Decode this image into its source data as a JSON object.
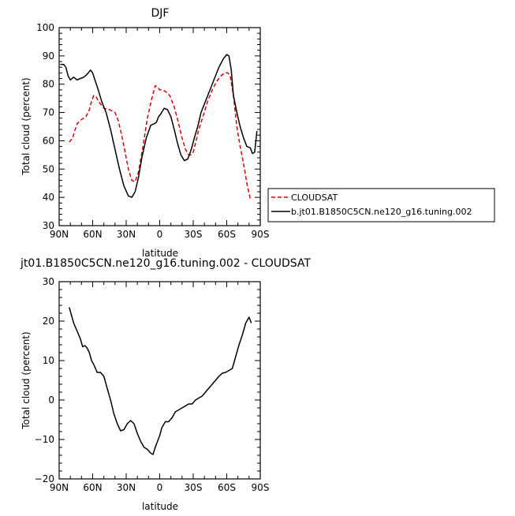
{
  "chart_data": [
    {
      "type": "line",
      "title": "DJF",
      "xlabel": "latitude",
      "ylabel": "Total cloud (percent)",
      "xlim": [
        90,
        -90
      ],
      "ylim": [
        30,
        100
      ],
      "xticks": [
        90,
        60,
        30,
        0,
        -30,
        -60,
        -90
      ],
      "xticklabels": [
        "90N",
        "60N",
        "30N",
        "0",
        "30S",
        "60S",
        "90S"
      ],
      "yticks": [
        30,
        40,
        50,
        60,
        70,
        80,
        90,
        100
      ],
      "yticklabels": [
        "30",
        "40",
        "50",
        "60",
        "70",
        "80",
        "90",
        "100"
      ],
      "legend_position": "right",
      "series": [
        {
          "name": "CLOUDSAT",
          "color": "#dd0000",
          "style": "dashed",
          "x": [
            81,
            78,
            74,
            70,
            66,
            63,
            61,
            59,
            57,
            54,
            50,
            45,
            40,
            37,
            34,
            31,
            28,
            25,
            22,
            19,
            15,
            11,
            7,
            4,
            2,
            0,
            -2,
            -5,
            -9,
            -13,
            -17,
            -20,
            -23,
            -26,
            -28,
            -30,
            -32,
            -35,
            -39,
            -43,
            -47,
            -51,
            -55,
            -58,
            -61,
            -63,
            -66,
            -69,
            -72,
            -75,
            -78,
            -81
          ],
          "y": [
            59.5,
            61,
            66,
            67.5,
            68.5,
            71,
            74,
            76,
            75.5,
            73.5,
            71.5,
            71,
            70,
            67,
            62,
            56,
            50,
            46,
            45.5,
            49,
            58,
            68,
            75,
            79.5,
            79,
            78,
            78,
            77.5,
            76,
            72,
            66,
            61,
            57,
            55,
            55,
            56,
            59,
            64,
            69,
            74,
            78,
            81,
            83,
            84,
            84,
            83,
            76,
            65,
            58,
            52,
            45,
            39.5
          ]
        },
        {
          "name": "b.jt01.B1850C5CN.ne120_g16.tuning.002",
          "color": "#000000",
          "style": "solid",
          "x": [
            89,
            86,
            84,
            82,
            80,
            77,
            74,
            71,
            68,
            65,
            62,
            60,
            58,
            55,
            52,
            48,
            44,
            40,
            36,
            32,
            28,
            25,
            22,
            19,
            16,
            12,
            8,
            5,
            3,
            1,
            -1,
            -4,
            -7,
            -10,
            -13,
            -16,
            -19,
            -22,
            -25,
            -27,
            -29,
            -31,
            -34,
            -37,
            -41,
            -45,
            -49,
            -53,
            -57,
            -60,
            -62,
            -64,
            -66,
            -69,
            -72,
            -75,
            -78,
            -81,
            -83,
            -85,
            -87
          ],
          "y": [
            87,
            87,
            86,
            83,
            81.5,
            82.5,
            81.5,
            82,
            82.5,
            83.5,
            85,
            84,
            81.5,
            78,
            74,
            70,
            64,
            57,
            50,
            44,
            40.5,
            40,
            42,
            47,
            54,
            61,
            65.5,
            66,
            66.5,
            68.5,
            69.5,
            71.5,
            71,
            68.5,
            64,
            59,
            55,
            53,
            53.5,
            55.5,
            58,
            61,
            65,
            70,
            74,
            78,
            82,
            86,
            89,
            90.5,
            90,
            85,
            76,
            70,
            65,
            61,
            58,
            57.5,
            55.5,
            56,
            63.5
          ]
        }
      ]
    },
    {
      "type": "line",
      "title": "jt01.B1850C5CN.ne120_g16.tuning.002 - CLOUDSAT",
      "xlabel": "latitude",
      "ylabel": "Total cloud (percent)",
      "xlim": [
        90,
        -90
      ],
      "ylim": [
        -20,
        30
      ],
      "xticks": [
        90,
        60,
        30,
        0,
        -30,
        -60,
        -90
      ],
      "xticklabels": [
        "90N",
        "60N",
        "30N",
        "0",
        "30S",
        "60S",
        "90S"
      ],
      "yticks": [
        -20,
        -10,
        0,
        10,
        20,
        30
      ],
      "yticklabels": [
        "−20",
        "−10",
        "0",
        "10",
        "20",
        "30"
      ],
      "series": [
        {
          "color": "#000000",
          "style": "solid",
          "x": [
            81,
            79,
            77,
            74,
            71,
            69,
            67,
            65,
            63,
            61,
            59,
            56,
            53,
            50,
            47,
            44,
            41,
            38,
            35,
            32,
            29,
            26,
            23,
            20,
            17,
            14,
            11,
            8,
            6,
            4,
            2,
            0,
            -2,
            -5,
            -8,
            -11,
            -14,
            -17,
            -20,
            -23,
            -26,
            -29,
            -32,
            -35,
            -38,
            -41,
            -44,
            -47,
            -50,
            -53,
            -56,
            -59,
            -62,
            -65,
            -68,
            -71,
            -74,
            -77,
            -80,
            -82
          ],
          "y": [
            23.5,
            21.5,
            19.5,
            17.5,
            15.5,
            13.5,
            13.8,
            13.2,
            12,
            10,
            9,
            7,
            7,
            6,
            3,
            0,
            -3.5,
            -6,
            -7.8,
            -7.5,
            -6,
            -5.2,
            -6,
            -8.5,
            -10.5,
            -12,
            -12.5,
            -13.5,
            -13.8,
            -12,
            -10.5,
            -9,
            -7,
            -5.5,
            -5.5,
            -4.5,
            -3,
            -2.5,
            -2,
            -1.5,
            -1,
            -1,
            0,
            0.5,
            1,
            2,
            3,
            4,
            5,
            6,
            6.8,
            7,
            7.5,
            8,
            11,
            14,
            16.5,
            19.5,
            21,
            19.5
          ]
        }
      ]
    }
  ]
}
